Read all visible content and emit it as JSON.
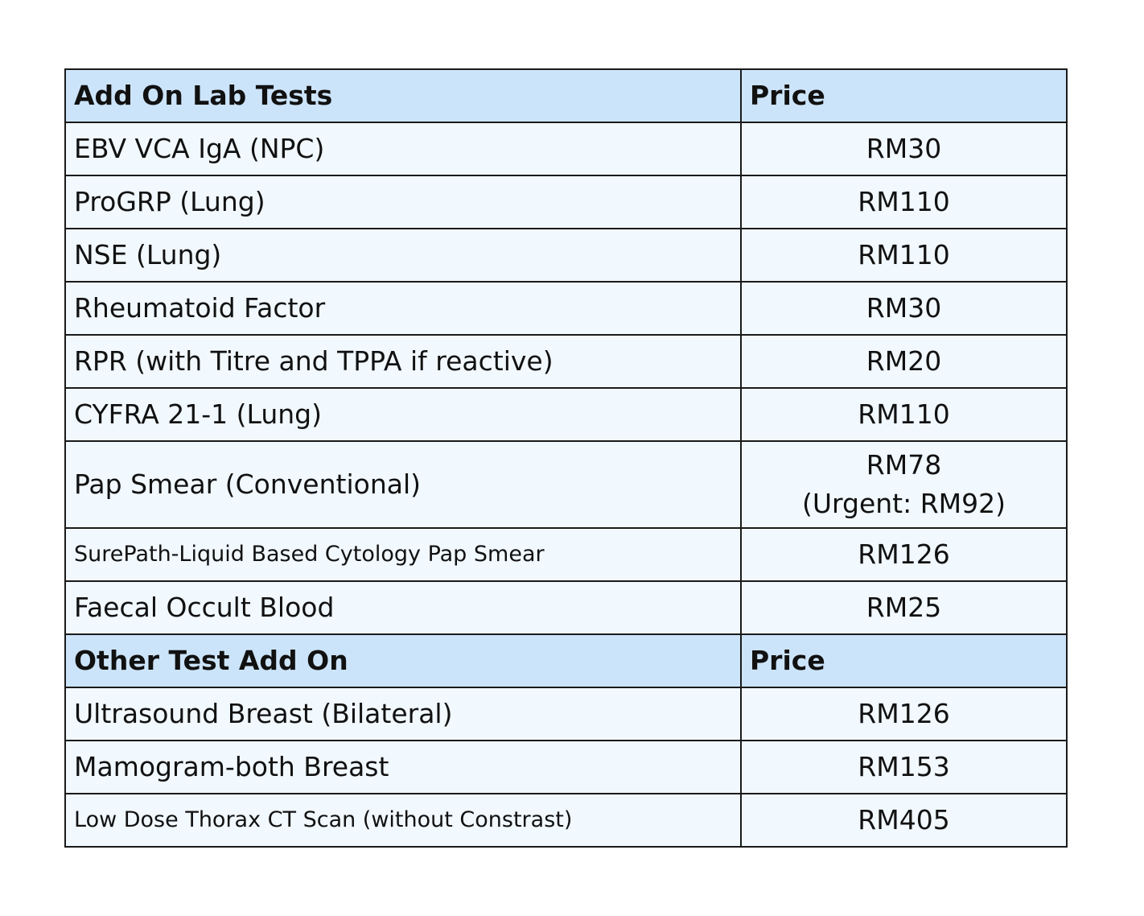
{
  "sections": [
    {
      "header": {
        "name": "Add On Lab Tests",
        "price": "Price"
      },
      "rows": [
        {
          "name": "EBV VCA IgA (NPC)",
          "price": "RM30"
        },
        {
          "name": "ProGRP (Lung)",
          "price": "RM110"
        },
        {
          "name": "NSE (Lung)",
          "price": "RM110"
        },
        {
          "name": "Rheumatoid Factor",
          "price": "RM30"
        },
        {
          "name": "RPR (with Titre and TPPA if reactive)",
          "price": "RM20"
        },
        {
          "name": "CYFRA 21-1 (Lung)",
          "price": "RM110"
        },
        {
          "name": "Pap Smear (Conventional)",
          "price": "RM78",
          "price_note": "(Urgent: RM92)"
        },
        {
          "name": "SurePath-Liquid Based Cytology Pap Smear",
          "price": "RM126"
        },
        {
          "name": "Faecal Occult Blood",
          "price": "RM25"
        }
      ]
    },
    {
      "header": {
        "name": "Other Test Add On",
        "price": "Price"
      },
      "rows": [
        {
          "name": "Ultrasound Breast (Bilateral)",
          "price": "RM126"
        },
        {
          "name": "Mamogram-both Breast",
          "price": "RM153"
        },
        {
          "name": "Low Dose Thorax CT Scan (without Constrast)",
          "price": "RM405"
        }
      ]
    }
  ],
  "colors": {
    "header_background": "#cce4fa",
    "row_background": "#f1f8fe",
    "border": "#1a1a1a",
    "text": "#111111"
  }
}
